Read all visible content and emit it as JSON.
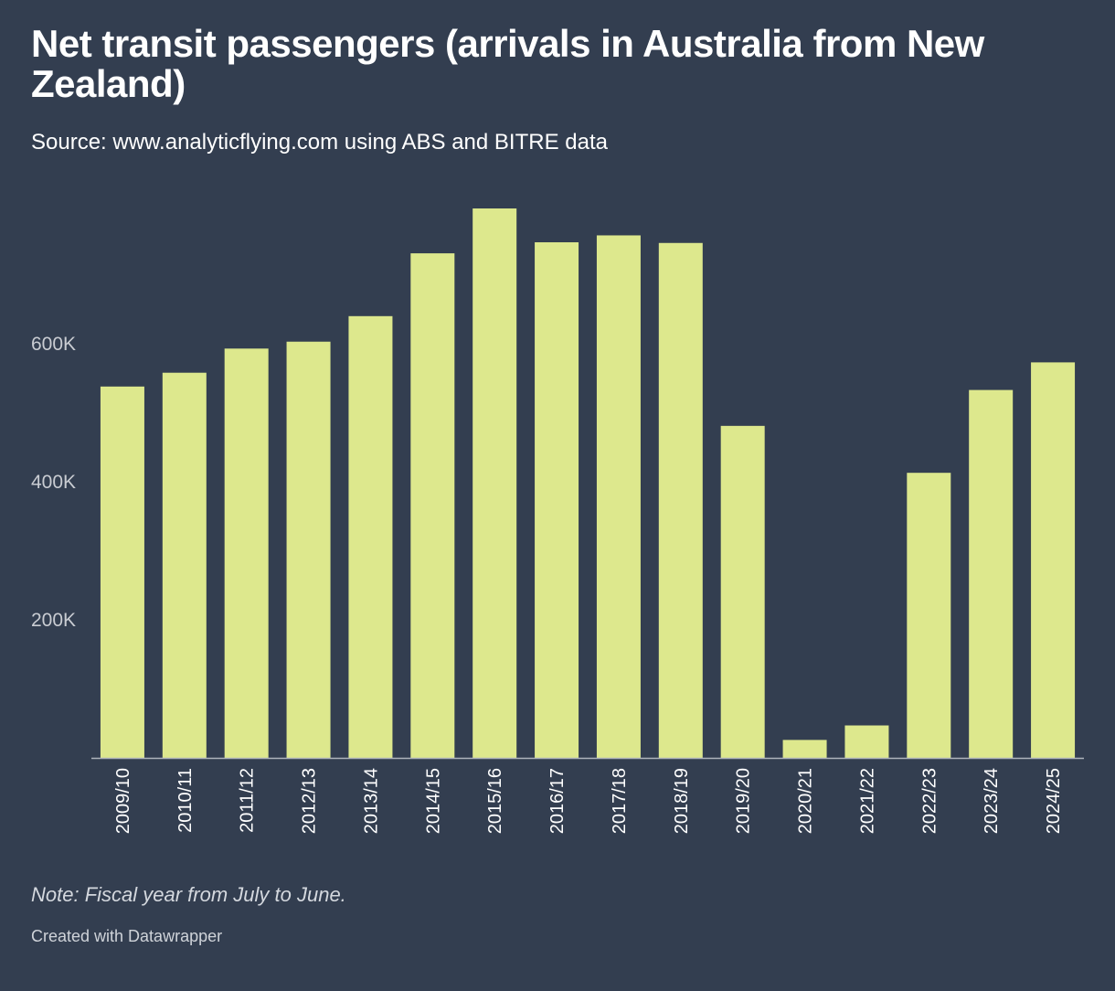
{
  "header": {
    "title": "Net transit passengers (arrivals in Australia from New Zealand)",
    "subtitle": "Source: www.analyticflying.com using ABS and BITRE data"
  },
  "footer": {
    "note": "Note: Fiscal year from July to June.",
    "credit": "Created with Datawrapper"
  },
  "colors": {
    "background": "#333e50",
    "bar": "#dde88d",
    "axis_label": "#c9ccd2",
    "baseline": "#aeb3bc"
  },
  "chart_data": {
    "type": "bar",
    "title": "Net transit passengers (arrivals in Australia from New Zealand)",
    "xlabel": "",
    "ylabel": "",
    "grid": false,
    "ylim": [
      0,
      800000
    ],
    "yticks": [
      200000,
      400000,
      600000
    ],
    "ytick_labels": [
      "200K",
      "400K",
      "600K"
    ],
    "categories": [
      "2009/10",
      "2010/11",
      "2011/12",
      "2012/13",
      "2013/14",
      "2014/15",
      "2015/16",
      "2016/17",
      "2017/18",
      "2018/19",
      "2019/20",
      "2020/21",
      "2021/22",
      "2022/23",
      "2023/24",
      "2024/25"
    ],
    "values": [
      538000,
      558000,
      593000,
      603000,
      640000,
      731000,
      796000,
      747000,
      757000,
      746000,
      481000,
      26000,
      47000,
      413000,
      533000,
      573000
    ]
  }
}
